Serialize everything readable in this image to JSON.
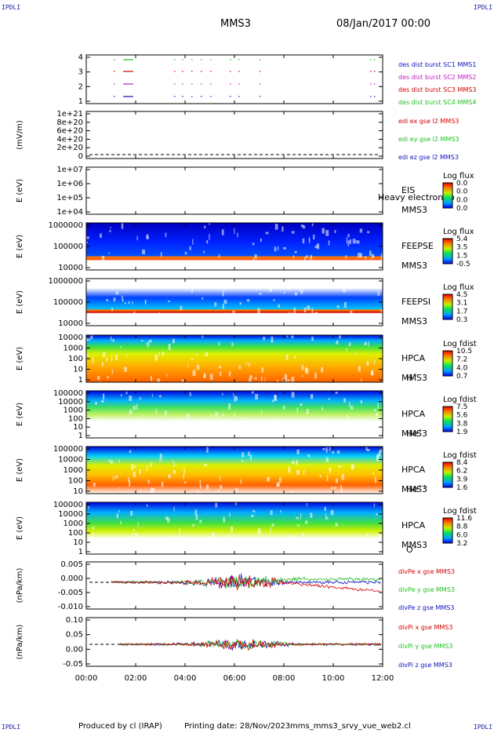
{
  "corner_label": "IPDLI",
  "header": {
    "spacecraft": "MMS3",
    "date_time": "08/Jan/2017 00:00"
  },
  "footer": {
    "produced_by": "Produced by cl (IRAP)",
    "printing_date": "Printing date: 28/Nov/2023",
    "filename": "mms_mms3_srvy_vue_web2.cl"
  },
  "colors": {
    "red": "#d40000",
    "green": "#22c022",
    "blue": "#1010c0",
    "magenta": "#c020c0"
  },
  "chart_data": {
    "type": "stacked-timeseries",
    "x_tick_labels": [
      "00:00",
      "02:00",
      "04:00",
      "06:00",
      "08:00",
      "10:00",
      "12:00"
    ],
    "x_range_hours": [
      0,
      12
    ],
    "panels": [
      {
        "id": "burst",
        "type": "timeline",
        "ylabel": "",
        "y_ticks": [
          "4",
          "3",
          "2",
          "1"
        ],
        "series": [
          {
            "name": "des dist burst SC1 MMS1",
            "color": "#1010c0"
          },
          {
            "name": "des dist burst SC2 MMS2",
            "color": "#c020c0"
          },
          {
            "name": "des dist burst SC3 MMS3",
            "color": "#d40000"
          },
          {
            "name": "des dist burst SC4 MMS4",
            "color": "#22c022"
          }
        ]
      },
      {
        "id": "edi",
        "type": "line",
        "ylabel": "(mV/m)",
        "y_ticks": [
          "1e+21",
          "8e+20",
          "6e+20",
          "4e+20",
          "2e+20",
          "0"
        ],
        "ylim": [
          0,
          1e+21
        ],
        "series": [
          {
            "name": "edi ex gse l2 MMS3",
            "color": "#d40000"
          },
          {
            "name": "edi ey gse l2 MMS3",
            "color": "#22c022"
          },
          {
            "name": "edi ez gse l2 MMS3",
            "color": "#1010c0"
          }
        ]
      },
      {
        "id": "eis",
        "type": "heatmap",
        "ylabel": "E (eV)",
        "y_ticks": [
          "1e+07",
          "1e+06",
          "1e+05",
          "1e+04"
        ],
        "labels": [
          "EIS",
          "MMS3"
        ],
        "overlap_label": "Heavy electron to",
        "colorbar_title": "Log flux",
        "colorbar_ticks": [
          "0.0",
          "0.0",
          "0.0",
          "0.0"
        ]
      },
      {
        "id": "feeps_e",
        "type": "heatmap",
        "ylabel": "E (eV)",
        "y_ticks": [
          "1000000",
          "100000",
          "10000"
        ],
        "labels": [
          "FEEPSE",
          "MMS3"
        ],
        "colorbar_title": "Log flux",
        "colorbar_ticks": [
          "5.4",
          "3.5",
          "1.5",
          "-0.5"
        ]
      },
      {
        "id": "feeps_i",
        "type": "heatmap",
        "ylabel": "E (eV)",
        "y_ticks": [
          "1000000",
          "100000",
          "10000"
        ],
        "labels": [
          "FEEPSI",
          "MMS3"
        ],
        "colorbar_title": "Log flux",
        "colorbar_ticks": [
          "4.5",
          "3.1",
          "1.7",
          "0.3"
        ]
      },
      {
        "id": "hpca_h",
        "type": "heatmap",
        "ylabel": "E (eV)",
        "y_ticks": [
          "10000",
          "1000",
          "100",
          "10",
          "1"
        ],
        "labels": [
          "HPCA",
          "MMS3"
        ],
        "species": "H",
        "species_sup": "+",
        "colorbar_title": "Log fdist",
        "colorbar_ticks": [
          "10.5",
          "7.2",
          "4.0",
          "0.7"
        ]
      },
      {
        "id": "hpca_he1",
        "type": "heatmap",
        "ylabel": "E (eV)",
        "y_ticks": [
          "100000",
          "10000",
          "1000",
          "100",
          "10",
          "1"
        ],
        "labels": [
          "HPCA",
          "MMS3"
        ],
        "species": "He",
        "species_sup": "+",
        "colorbar_title": "Log fdist",
        "colorbar_ticks": [
          "7.5",
          "5.6",
          "3.8",
          "1.9"
        ]
      },
      {
        "id": "hpca_he2",
        "type": "heatmap",
        "ylabel": "E (eV)",
        "y_ticks": [
          "100000",
          "10000",
          "1000",
          "100",
          "10"
        ],
        "labels": [
          "HPCA",
          "MMS3"
        ],
        "species": "He",
        "species_sup": "++",
        "colorbar_title": "Log fdist",
        "colorbar_ticks": [
          "8.4",
          "6.2",
          "3.9",
          "1.6"
        ]
      },
      {
        "id": "hpca_o",
        "type": "heatmap",
        "ylabel": "E (eV)",
        "y_ticks": [
          "100000",
          "10000",
          "1000",
          "100",
          "10",
          "1"
        ],
        "labels": [
          "HPCA",
          "MMS3"
        ],
        "species": "O",
        "species_sup": "+",
        "colorbar_title": "Log fdist",
        "colorbar_ticks": [
          "11.6",
          "8.8",
          "6.0",
          "3.2"
        ]
      },
      {
        "id": "divpe",
        "type": "line",
        "ylabel": "(nPa/km)",
        "y_ticks": [
          "0.005",
          "0.000",
          "-0.005",
          "-0.010"
        ],
        "ylim": [
          -0.011,
          0.008
        ],
        "series": [
          {
            "name": "divPe x gse MMS3",
            "color": "#d40000"
          },
          {
            "name": "divPe y gse MMS3",
            "color": "#22c022"
          },
          {
            "name": "divPe z gse MMS3",
            "color": "#1010c0"
          }
        ]
      },
      {
        "id": "divpi",
        "type": "line",
        "ylabel": "(nPa/km)",
        "y_ticks": [
          "0.10",
          "0.05",
          "0.00",
          "-0.05"
        ],
        "ylim": [
          -0.08,
          0.11
        ],
        "series": [
          {
            "name": "divPi x gse MMS3",
            "color": "#d40000"
          },
          {
            "name": "divPi y gse MMS3",
            "color": "#22c022"
          },
          {
            "name": "divPi z gse MMS3",
            "color": "#1010c0"
          }
        ]
      }
    ]
  }
}
